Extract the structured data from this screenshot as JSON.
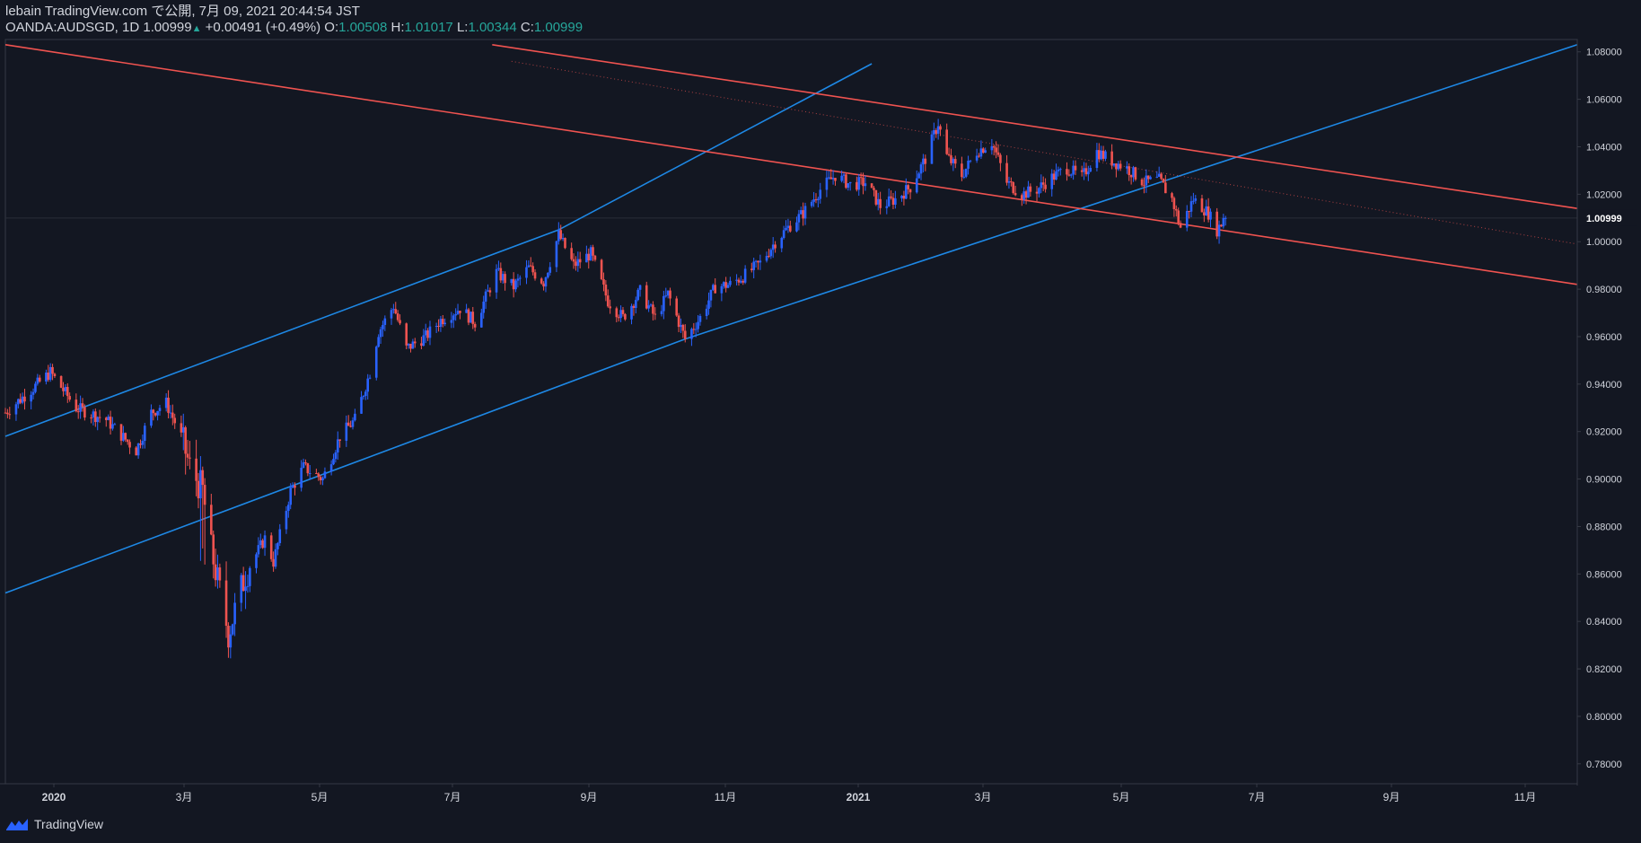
{
  "header": {
    "publish_line": "lebain TradingView.com で公開, 7月 09, 2021 20:44:54 JST",
    "symbol": "OANDA:AUDSGD, 1D",
    "last": "1.00999",
    "change": "+0.00491 (+0.49%)",
    "o_label": "O:",
    "o": "1.00508",
    "h_label": "H:",
    "h": "1.01017",
    "l_label": "L:",
    "l": "1.00344",
    "c_label": "C:",
    "c": "1.00999"
  },
  "footer": {
    "brand": "TradingView"
  },
  "colors": {
    "bg": "#131722",
    "up": "#2962ff",
    "down": "#ef5350",
    "text": "#d1d4dc",
    "axis": "#363a45",
    "blue_line": "#1e88e5",
    "red_line": "#ef5350"
  },
  "chart_data": {
    "type": "candlestick",
    "price_axis": [
      "1.08000",
      "1.06000",
      "1.04000",
      "1.02000",
      "1.00000",
      "0.98000",
      "0.96000",
      "0.94000",
      "0.92000",
      "0.90000",
      "0.88000",
      "0.86000",
      "0.84000",
      "0.82000",
      "0.80000",
      "0.78000"
    ],
    "price_range": [
      0.7716,
      1.0852
    ],
    "last_price_label": "1.00999",
    "time_axis": [
      "2020",
      "3月",
      "5月",
      "7月",
      "9月",
      "11月",
      "2021",
      "3月",
      "5月",
      "7月",
      "9月",
      "11月"
    ],
    "time_axis_bold": [
      true,
      false,
      false,
      false,
      false,
      false,
      true,
      false,
      false,
      false,
      false,
      false
    ],
    "date_range": [
      "2019-12-18",
      "2021-12-20"
    ],
    "close_path": [
      [
        "2019-12-18",
        0.928
      ],
      [
        "2020-01-02",
        0.94
      ],
      [
        "2020-01-08",
        0.945
      ],
      [
        "2020-01-20",
        0.93
      ],
      [
        "2020-02-03",
        0.925
      ],
      [
        "2020-02-17",
        0.912
      ],
      [
        "2020-02-24",
        0.928
      ],
      [
        "2020-03-02",
        0.932
      ],
      [
        "2020-03-09",
        0.918
      ],
      [
        "2020-03-13",
        0.905
      ],
      [
        "2020-03-19",
        0.895
      ],
      [
        "2020-03-23",
        0.87
      ],
      [
        "2020-03-31",
        0.835
      ],
      [
        "2020-04-08",
        0.86
      ],
      [
        "2020-04-17",
        0.875
      ],
      [
        "2020-04-21",
        0.865
      ],
      [
        "2020-04-29",
        0.895
      ],
      [
        "2020-05-05",
        0.905
      ],
      [
        "2020-05-14",
        0.9
      ],
      [
        "2020-05-22",
        0.918
      ],
      [
        "2020-05-29",
        0.925
      ],
      [
        "2020-06-05",
        0.945
      ],
      [
        "2020-06-09",
        0.962
      ],
      [
        "2020-06-16",
        0.973
      ],
      [
        "2020-06-22",
        0.955
      ],
      [
        "2020-07-01",
        0.96
      ],
      [
        "2020-07-08",
        0.967
      ],
      [
        "2020-07-17",
        0.972
      ],
      [
        "2020-07-24",
        0.966
      ],
      [
        "2020-08-03",
        0.987
      ],
      [
        "2020-08-11",
        0.981
      ],
      [
        "2020-08-18",
        0.989
      ],
      [
        "2020-08-25",
        0.983
      ],
      [
        "2020-09-01",
        1.003
      ],
      [
        "2020-09-08",
        0.99
      ],
      [
        "2020-09-16",
        0.995
      ],
      [
        "2020-09-24",
        0.975
      ],
      [
        "2020-10-01",
        0.968
      ],
      [
        "2020-10-09",
        0.979
      ],
      [
        "2020-10-16",
        0.968
      ],
      [
        "2020-10-22",
        0.978
      ],
      [
        "2020-10-30",
        0.959
      ],
      [
        "2020-11-06",
        0.968
      ],
      [
        "2020-11-13",
        0.981
      ],
      [
        "2020-11-20",
        0.982
      ],
      [
        "2020-11-27",
        0.986
      ],
      [
        "2020-12-04",
        0.991
      ],
      [
        "2020-12-11",
        1.0
      ],
      [
        "2020-12-18",
        1.007
      ],
      [
        "2020-12-24",
        1.012
      ],
      [
        "2021-01-01",
        1.022
      ],
      [
        "2021-01-08",
        1.028
      ],
      [
        "2021-01-15",
        1.024
      ],
      [
        "2021-01-22",
        1.025
      ],
      [
        "2021-01-29",
        1.015
      ],
      [
        "2021-02-05",
        1.018
      ],
      [
        "2021-02-12",
        1.023
      ],
      [
        "2021-02-19",
        1.035
      ],
      [
        "2021-02-25",
        1.05
      ],
      [
        "2021-03-01",
        1.036
      ],
      [
        "2021-03-08",
        1.028
      ],
      [
        "2021-03-15",
        1.038
      ],
      [
        "2021-03-22",
        1.042
      ],
      [
        "2021-03-29",
        1.025
      ],
      [
        "2021-04-05",
        1.02
      ],
      [
        "2021-04-12",
        1.022
      ],
      [
        "2021-04-19",
        1.027
      ],
      [
        "2021-04-26",
        1.031
      ],
      [
        "2021-05-03",
        1.027
      ],
      [
        "2021-05-10",
        1.038
      ],
      [
        "2021-05-17",
        1.034
      ],
      [
        "2021-05-24",
        1.031
      ],
      [
        "2021-06-01",
        1.025
      ],
      [
        "2021-06-08",
        1.026
      ],
      [
        "2021-06-14",
        1.018
      ],
      [
        "2021-06-18",
        1.006
      ],
      [
        "2021-06-24",
        1.018
      ],
      [
        "2021-07-01",
        1.012
      ],
      [
        "2021-07-05",
        1.005
      ],
      [
        "2021-07-09",
        1.00999
      ]
    ],
    "trendlines": [
      {
        "color": "#1e88e5",
        "points": [
          [
            "2019-12-18",
            0.918
          ],
          [
            "2020-09-01",
            1.005
          ],
          [
            "2021-01-25",
            1.075
          ]
        ]
      },
      {
        "color": "#1e88e5",
        "points": [
          [
            "2019-12-18",
            0.852
          ],
          [
            "2020-10-30",
            0.959
          ],
          [
            "2021-12-20",
            1.083
          ]
        ]
      },
      {
        "color": "#ef5350",
        "points": [
          [
            "2019-12-18",
            1.083
          ],
          [
            "2021-12-20",
            0.982
          ]
        ]
      },
      {
        "color": "#ef5350",
        "points": [
          [
            "2020-08-01",
            1.083
          ],
          [
            "2021-12-20",
            1.014
          ]
        ]
      },
      {
        "color": "#ef5350",
        "dotted": true,
        "points": [
          [
            "2020-08-10",
            1.076
          ],
          [
            "2021-12-20",
            0.999
          ]
        ]
      }
    ]
  }
}
